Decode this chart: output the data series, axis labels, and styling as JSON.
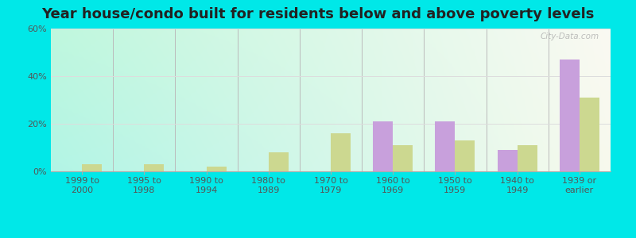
{
  "title": "Year house/condo built for residents below and above poverty levels",
  "categories": [
    "1999 to\n2000",
    "1995 to\n1998",
    "1990 to\n1994",
    "1980 to\n1989",
    "1970 to\n1979",
    "1960 to\n1969",
    "1950 to\n1959",
    "1940 to\n1949",
    "1939 or\nearlier"
  ],
  "below_poverty": [
    0,
    0,
    0,
    0,
    0,
    21,
    21,
    9,
    47
  ],
  "above_poverty": [
    3,
    3,
    2,
    8,
    16,
    11,
    13,
    11,
    31
  ],
  "below_color": "#c8a0dc",
  "above_color": "#ccd890",
  "ylim": [
    0,
    60
  ],
  "yticks": [
    0,
    20,
    40,
    60
  ],
  "ytick_labels": [
    "0%",
    "20%",
    "40%",
    "60%"
  ],
  "bg_outer": "#00e8e8",
  "grid_color": "#dddddd",
  "title_fontsize": 13,
  "tick_fontsize": 8,
  "legend_fontsize": 9,
  "bar_width": 0.32,
  "watermark": "City-Data.com"
}
